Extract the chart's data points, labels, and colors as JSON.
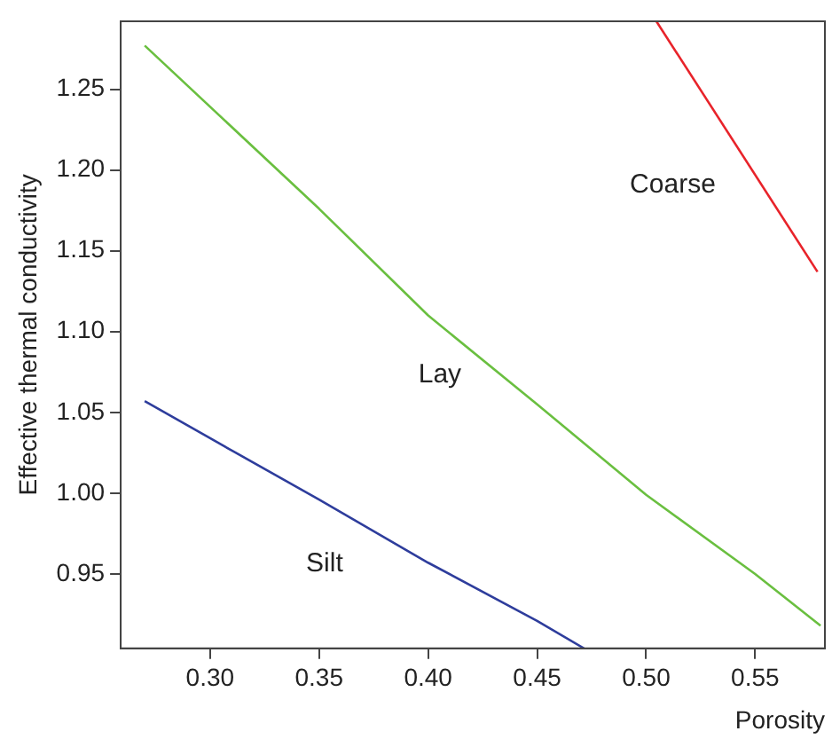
{
  "chart_data": {
    "type": "line",
    "xlabel": "Porosity",
    "ylabel": "Effective thermal conductivity",
    "xlim": [
      0.259,
      0.582
    ],
    "xticks": [
      {
        "value": 0.3,
        "label": "0.30"
      },
      {
        "value": 0.35,
        "label": "0.35"
      },
      {
        "value": 0.4,
        "label": "0.40"
      },
      {
        "value": 0.45,
        "label": "0.45"
      },
      {
        "value": 0.5,
        "label": "0.50"
      },
      {
        "value": 0.55,
        "label": "0.55"
      }
    ],
    "ylim": [
      0.904,
      1.292
    ],
    "yticks": [
      0.95,
      {
        "value": 1.0,
        "label": "1.00"
      },
      1.05,
      {
        "value": 1.1,
        "label": "1.10"
      },
      1.15,
      {
        "value": 1.2,
        "label": "1.20"
      },
      1.25
    ],
    "grid": false,
    "legend": false,
    "marker": "none",
    "line_style": "solid",
    "series": [
      {
        "name": "Lay",
        "color": "#6abf40",
        "x": [
          0.27,
          0.35,
          0.4,
          0.45,
          0.5,
          0.55,
          0.58
        ],
        "values": [
          1.277,
          1.176,
          1.11,
          1.055,
          0.999,
          0.95,
          0.918
        ]
      },
      {
        "name": "Silt",
        "color": "#2e3d9c",
        "x": [
          0.27,
          0.3,
          0.35,
          0.4,
          0.45,
          0.4715
        ],
        "values": [
          1.057,
          1.034,
          0.996,
          0.957,
          0.921,
          0.904
        ]
      },
      {
        "name": "Coarse",
        "color": "#e8232a",
        "x": [
          0.5047,
          0.5786
        ],
        "values": [
          1.292,
          1.137
        ]
      }
    ]
  }
}
